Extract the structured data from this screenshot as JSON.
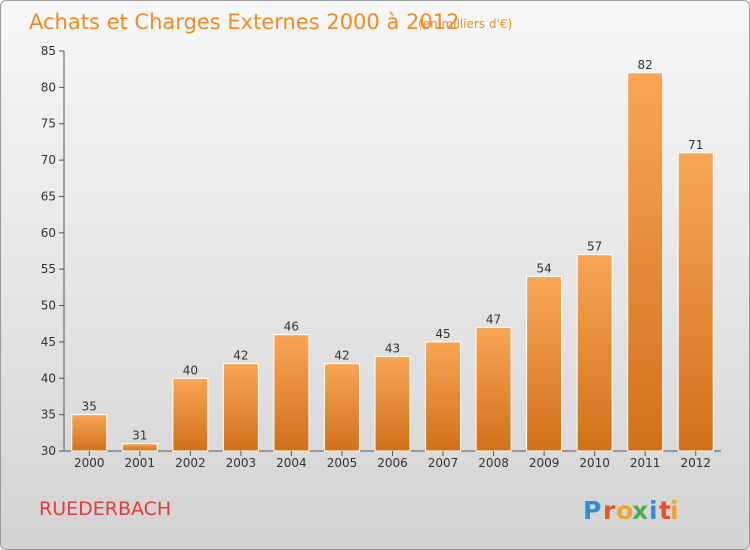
{
  "chart_data": {
    "type": "bar",
    "title": "Achats et Charges Externes 2000 à 2012",
    "subtitle": "(en milliers d'€)",
    "categories": [
      "2000",
      "2001",
      "2002",
      "2003",
      "2004",
      "2005",
      "2006",
      "2007",
      "2008",
      "2009",
      "2010",
      "2011",
      "2012"
    ],
    "values": [
      35,
      31,
      40,
      42,
      46,
      42,
      43,
      45,
      47,
      54,
      57,
      82,
      71
    ],
    "ylim": [
      30,
      85
    ],
    "yticks": [
      30,
      35,
      40,
      45,
      50,
      55,
      60,
      65,
      70,
      75,
      80,
      85
    ],
    "grid": false,
    "bar_color": "#f08a24",
    "title_color": "#f08a24"
  },
  "commune": "RUEDERBACH",
  "logo": {
    "letters": [
      "P",
      "r",
      "o",
      "x",
      "i",
      "t",
      "i"
    ],
    "colors": [
      "#2f8fd6",
      "#e8502c",
      "#f2a32a",
      "#4cae4f",
      "#2f8fd6",
      "#e8502c",
      "#f2a32a"
    ]
  }
}
